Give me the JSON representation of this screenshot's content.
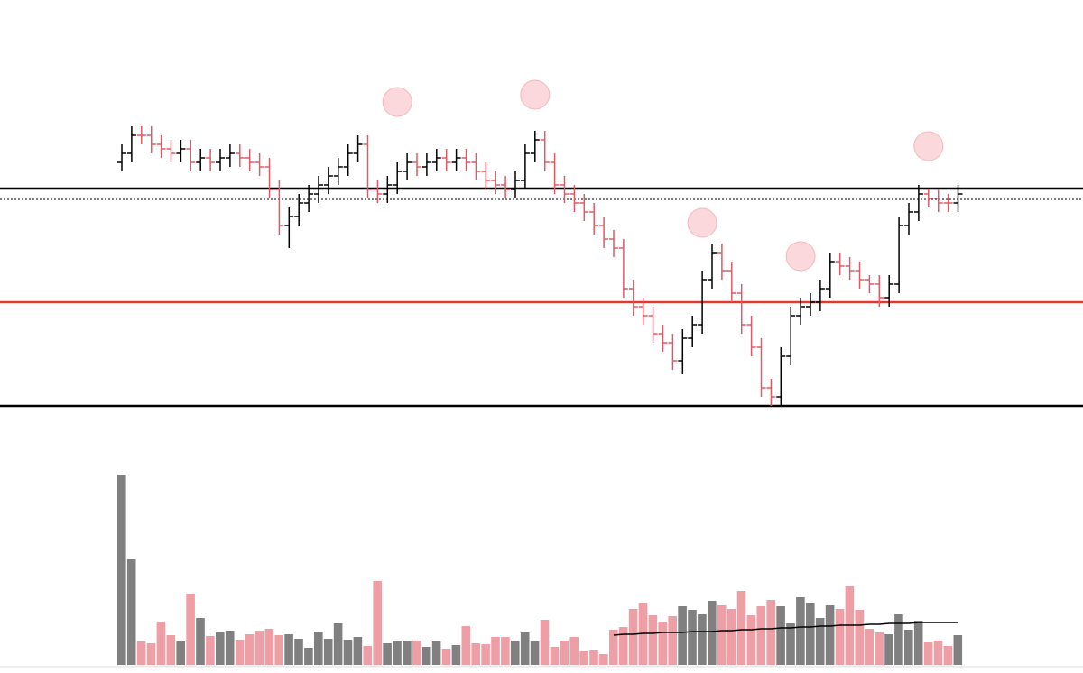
{
  "chart_data": {
    "type": "ohlc",
    "up_color": "#000000",
    "down_color": "#e05a66",
    "volume_up_color": "#808080",
    "volume_down_color": "#ee9ea5",
    "volume_ma_color": "#000000",
    "marker_color": "#f5b8bd",
    "ylim": [
      0,
      370
    ],
    "volume_ylim": [
      0,
      220
    ],
    "levels": [
      {
        "value": 241,
        "color": "#000000",
        "style": "solid"
      },
      {
        "value": 229,
        "color": "#000000",
        "style": "dotted"
      },
      {
        "value": 115,
        "color": "#e03a2e",
        "style": "solid"
      },
      {
        "value": 0,
        "color": "#000000",
        "style": "solid"
      }
    ],
    "open": [
      270,
      280,
      300,
      300,
      290,
      285,
      280,
      285,
      270,
      275,
      270,
      275,
      280,
      275,
      270,
      265,
      240,
      200,
      210,
      225,
      235,
      245,
      255,
      265,
      280,
      290,
      240,
      235,
      245,
      260,
      270,
      265,
      270,
      275,
      270,
      275,
      270,
      260,
      250,
      245,
      240,
      250,
      280,
      295,
      270,
      245,
      235,
      225,
      215,
      200,
      185,
      175,
      130,
      110,
      100,
      80,
      70,
      50,
      75,
      90,
      140,
      170,
      150,
      125,
      90,
      65,
      20,
      10,
      55,
      100,
      110,
      115,
      130,
      160,
      155,
      150,
      140,
      135,
      120,
      135,
      200,
      215,
      235,
      230,
      225,
      225
    ],
    "high": [
      290,
      310,
      310,
      310,
      300,
      295,
      295,
      295,
      285,
      285,
      285,
      290,
      290,
      285,
      280,
      275,
      250,
      220,
      235,
      245,
      255,
      265,
      275,
      290,
      300,
      300,
      250,
      255,
      270,
      280,
      280,
      280,
      285,
      285,
      285,
      285,
      280,
      270,
      260,
      255,
      260,
      290,
      305,
      305,
      280,
      255,
      245,
      235,
      225,
      210,
      195,
      185,
      140,
      120,
      110,
      90,
      80,
      85,
      100,
      150,
      180,
      180,
      160,
      135,
      100,
      75,
      30,
      65,
      110,
      120,
      125,
      140,
      170,
      170,
      165,
      160,
      145,
      145,
      145,
      210,
      225,
      245,
      240,
      240,
      235,
      245
    ],
    "low": [
      260,
      270,
      290,
      280,
      275,
      270,
      270,
      260,
      260,
      260,
      260,
      265,
      265,
      260,
      255,
      230,
      190,
      175,
      200,
      215,
      225,
      235,
      245,
      255,
      270,
      230,
      225,
      225,
      235,
      250,
      255,
      255,
      260,
      260,
      260,
      260,
      250,
      240,
      235,
      230,
      230,
      240,
      270,
      260,
      235,
      225,
      215,
      205,
      190,
      175,
      165,
      120,
      100,
      90,
      70,
      60,
      40,
      35,
      65,
      80,
      130,
      140,
      115,
      80,
      55,
      10,
      0,
      0,
      45,
      90,
      100,
      105,
      120,
      145,
      140,
      130,
      125,
      110,
      110,
      125,
      190,
      205,
      220,
      215,
      215,
      215
    ],
    "close": [
      280,
      300,
      300,
      290,
      285,
      280,
      285,
      270,
      275,
      270,
      275,
      280,
      275,
      270,
      265,
      240,
      200,
      210,
      225,
      235,
      245,
      255,
      265,
      280,
      290,
      240,
      235,
      245,
      260,
      270,
      265,
      270,
      275,
      270,
      275,
      270,
      260,
      250,
      245,
      240,
      250,
      280,
      295,
      270,
      245,
      235,
      225,
      215,
      200,
      185,
      175,
      130,
      110,
      100,
      80,
      70,
      50,
      75,
      90,
      140,
      170,
      150,
      125,
      90,
      65,
      20,
      10,
      55,
      100,
      110,
      115,
      130,
      160,
      155,
      150,
      140,
      135,
      120,
      135,
      200,
      215,
      235,
      230,
      225,
      225,
      235
    ],
    "volume": [
      211,
      117,
      26,
      24,
      48,
      33,
      26,
      79,
      52,
      32,
      36,
      38,
      28,
      34,
      38,
      40,
      33,
      34,
      29,
      19,
      37,
      29,
      46,
      28,
      31,
      21,
      93,
      24,
      27,
      26,
      27,
      20,
      26,
      18,
      22,
      43,
      24,
      23,
      31,
      31,
      27,
      36,
      26,
      50,
      20,
      27,
      31,
      15,
      16,
      12,
      39,
      42,
      62,
      69,
      55,
      48,
      54,
      65,
      61,
      56,
      71,
      66,
      62,
      82,
      55,
      65,
      72,
      65,
      46,
      75,
      69,
      52,
      66,
      62,
      87,
      61,
      40,
      36,
      34,
      56,
      39,
      49,
      25,
      27,
      21,
      33
    ],
    "volume_ma": [
      null,
      null,
      null,
      null,
      null,
      null,
      null,
      null,
      null,
      null,
      null,
      null,
      null,
      null,
      null,
      null,
      null,
      null,
      null,
      null,
      null,
      null,
      null,
      null,
      null,
      null,
      null,
      null,
      null,
      null,
      null,
      null,
      null,
      null,
      null,
      null,
      null,
      null,
      null,
      null,
      null,
      null,
      null,
      null,
      null,
      null,
      null,
      null,
      null,
      null,
      33,
      34,
      34,
      35,
      35,
      36,
      36,
      36,
      37,
      37,
      37,
      38,
      38,
      39,
      39,
      40,
      40,
      41,
      41,
      42,
      42,
      43,
      43,
      44,
      44,
      44,
      45,
      45,
      46,
      46,
      46,
      47,
      47,
      47,
      47,
      47
    ],
    "markers": {
      "x": [
        28,
        42,
        59,
        69,
        82
      ],
      "values": [
        337,
        345,
        203,
        166,
        288
      ]
    }
  }
}
